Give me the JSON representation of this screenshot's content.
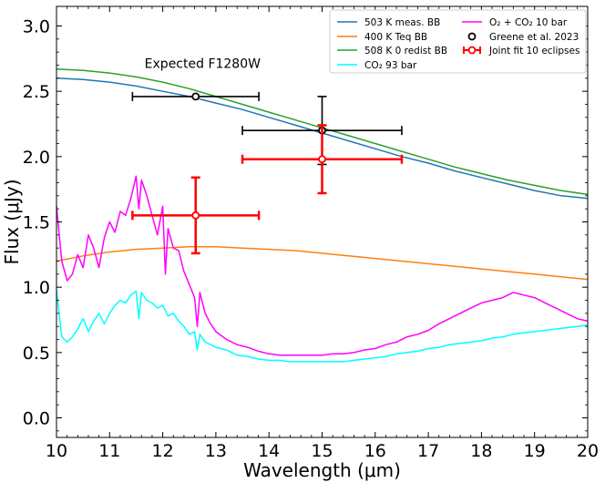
{
  "chart_data": {
    "type": "line",
    "title": "",
    "xlabel": "Wavelength (μm)",
    "ylabel": "Flux (μJy)",
    "xlim": [
      10,
      20
    ],
    "ylim": [
      -0.15,
      3.15
    ],
    "x_ticks": [
      10,
      11,
      12,
      13,
      14,
      15,
      16,
      17,
      18,
      19,
      20
    ],
    "x_tick_labels": [
      "10",
      "11",
      "12",
      "13",
      "14",
      "15",
      "16",
      "17",
      "18",
      "19",
      "20"
    ],
    "y_ticks": [
      0.0,
      0.5,
      1.0,
      1.5,
      2.0,
      2.5,
      3.0
    ],
    "y_tick_labels": [
      "0.0",
      "0.5",
      "1.0",
      "1.5",
      "2.0",
      "2.5",
      "3.0"
    ],
    "annotations": [
      {
        "text": "Expected F1280W",
        "x": 12.75,
        "y": 2.68
      }
    ],
    "series": [
      {
        "name": "503 K meas. BB",
        "kind": "line",
        "color": "#1f77b4",
        "x": [
          10,
          10.5,
          11,
          11.5,
          12,
          12.5,
          13,
          13.5,
          14,
          14.5,
          15,
          15.5,
          16,
          16.5,
          17,
          17.5,
          18,
          18.5,
          19,
          19.5,
          20
        ],
        "y": [
          2.6,
          2.59,
          2.57,
          2.54,
          2.5,
          2.46,
          2.41,
          2.36,
          2.3,
          2.24,
          2.18,
          2.12,
          2.06,
          2.0,
          1.95,
          1.89,
          1.84,
          1.79,
          1.74,
          1.7,
          1.68
        ]
      },
      {
        "name": "400 K Teq BB",
        "kind": "line",
        "color": "#ff7f0e",
        "x": [
          10,
          10.5,
          11,
          11.5,
          12,
          12.5,
          13,
          13.5,
          14,
          14.5,
          15,
          15.5,
          16,
          16.5,
          17,
          17.5,
          18,
          18.5,
          19,
          19.5,
          20
        ],
        "y": [
          1.2,
          1.24,
          1.27,
          1.29,
          1.3,
          1.31,
          1.31,
          1.3,
          1.29,
          1.28,
          1.26,
          1.24,
          1.22,
          1.2,
          1.18,
          1.16,
          1.14,
          1.12,
          1.1,
          1.08,
          1.06
        ]
      },
      {
        "name": "508 K 0 redist BB",
        "kind": "line",
        "color": "#2ca02c",
        "x": [
          10,
          10.5,
          11,
          11.5,
          12,
          12.5,
          13,
          13.5,
          14,
          14.5,
          15,
          15.5,
          16,
          16.5,
          17,
          17.5,
          18,
          18.5,
          19,
          19.5,
          20
        ],
        "y": [
          2.67,
          2.66,
          2.64,
          2.61,
          2.57,
          2.52,
          2.46,
          2.4,
          2.34,
          2.28,
          2.22,
          2.16,
          2.1,
          2.04,
          1.98,
          1.92,
          1.87,
          1.82,
          1.78,
          1.74,
          1.71
        ]
      },
      {
        "name": "CO₂ 93 bar",
        "kind": "line",
        "color": "#00ffff",
        "x": [
          10,
          10.1,
          10.2,
          10.3,
          10.4,
          10.5,
          10.6,
          10.7,
          10.8,
          10.9,
          11.0,
          11.1,
          11.2,
          11.3,
          11.4,
          11.5,
          11.55,
          11.6,
          11.7,
          11.8,
          11.9,
          12.0,
          12.1,
          12.2,
          12.3,
          12.4,
          12.5,
          12.6,
          12.65,
          12.7,
          12.8,
          12.9,
          13.0,
          13.2,
          13.4,
          13.6,
          13.8,
          14.0,
          14.2,
          14.4,
          14.6,
          14.8,
          15.0,
          15.2,
          15.4,
          15.6,
          15.8,
          16.0,
          16.2,
          16.4,
          16.6,
          16.8,
          17.0,
          17.2,
          17.4,
          17.6,
          17.8,
          18.0,
          18.2,
          18.4,
          18.6,
          18.8,
          19.0,
          19.2,
          19.4,
          19.6,
          19.8,
          20.0
        ],
        "y": [
          0.98,
          0.62,
          0.58,
          0.62,
          0.68,
          0.76,
          0.66,
          0.74,
          0.8,
          0.72,
          0.8,
          0.86,
          0.9,
          0.88,
          0.94,
          0.97,
          0.76,
          0.96,
          0.9,
          0.88,
          0.84,
          0.86,
          0.78,
          0.8,
          0.74,
          0.7,
          0.64,
          0.66,
          0.52,
          0.64,
          0.58,
          0.56,
          0.54,
          0.52,
          0.48,
          0.47,
          0.45,
          0.44,
          0.44,
          0.43,
          0.43,
          0.43,
          0.43,
          0.43,
          0.43,
          0.44,
          0.45,
          0.46,
          0.47,
          0.49,
          0.5,
          0.51,
          0.53,
          0.54,
          0.56,
          0.57,
          0.58,
          0.59,
          0.61,
          0.62,
          0.64,
          0.65,
          0.66,
          0.67,
          0.68,
          0.69,
          0.7,
          0.71
        ]
      },
      {
        "name": "O₂ + CO₂ 10 bar",
        "kind": "line",
        "color": "#ff00ff",
        "x": [
          10,
          10.1,
          10.2,
          10.3,
          10.4,
          10.5,
          10.6,
          10.7,
          10.8,
          10.9,
          11.0,
          11.1,
          11.2,
          11.3,
          11.4,
          11.5,
          11.55,
          11.6,
          11.7,
          11.8,
          11.9,
          12.0,
          12.05,
          12.1,
          12.2,
          12.3,
          12.4,
          12.5,
          12.6,
          12.65,
          12.7,
          12.8,
          12.9,
          13.0,
          13.2,
          13.4,
          13.6,
          13.8,
          14.0,
          14.2,
          14.4,
          14.6,
          14.8,
          15.0,
          15.2,
          15.4,
          15.6,
          15.8,
          16.0,
          16.2,
          16.4,
          16.6,
          16.8,
          17.0,
          17.2,
          17.4,
          17.6,
          17.8,
          18.0,
          18.2,
          18.4,
          18.6,
          18.8,
          19.0,
          19.2,
          19.4,
          19.6,
          19.8,
          20.0
        ],
        "y": [
          1.62,
          1.2,
          1.05,
          1.1,
          1.25,
          1.15,
          1.4,
          1.3,
          1.15,
          1.38,
          1.5,
          1.42,
          1.58,
          1.55,
          1.68,
          1.85,
          1.6,
          1.82,
          1.7,
          1.55,
          1.4,
          1.62,
          1.1,
          1.45,
          1.3,
          1.28,
          1.12,
          1.02,
          0.92,
          0.7,
          0.96,
          0.8,
          0.72,
          0.66,
          0.6,
          0.56,
          0.54,
          0.51,
          0.49,
          0.48,
          0.48,
          0.48,
          0.48,
          0.48,
          0.49,
          0.49,
          0.5,
          0.52,
          0.53,
          0.56,
          0.58,
          0.62,
          0.64,
          0.67,
          0.72,
          0.76,
          0.8,
          0.84,
          0.88,
          0.9,
          0.92,
          0.96,
          0.94,
          0.92,
          0.88,
          0.84,
          0.8,
          0.76,
          0.74
        ]
      },
      {
        "name": "Greene et al. 2023",
        "kind": "errorbar",
        "color": "#000000",
        "points": [
          {
            "x": 12.62,
            "y": 2.46,
            "xerr": 1.19,
            "yerr": 0.0
          },
          {
            "x": 15.0,
            "y": 2.2,
            "xerr": 1.5,
            "yerr": 0.26
          }
        ]
      },
      {
        "name": "Joint fit 10 eclipses",
        "kind": "errorbar",
        "color": "#ff0000",
        "points": [
          {
            "x": 12.62,
            "y": 1.55,
            "xerr": 1.19,
            "yerr": 0.29
          },
          {
            "x": 15.0,
            "y": 1.98,
            "xerr": 1.5,
            "yerr": 0.26
          }
        ]
      }
    ],
    "legend": {
      "placement": "top-right",
      "entries": [
        {
          "label": "503 K meas. BB",
          "color": "#1f77b4",
          "kind": "line"
        },
        {
          "label": "400 K Teq BB",
          "color": "#ff7f0e",
          "kind": "line"
        },
        {
          "label": "508 K 0 redist BB",
          "color": "#2ca02c",
          "kind": "line"
        },
        {
          "label": "CO₂ 93 bar",
          "color": "#00ffff",
          "kind": "line"
        },
        {
          "label": "O₂ + CO₂ 10 bar",
          "color": "#ff00ff",
          "kind": "line"
        },
        {
          "label": "Greene et al. 2023",
          "color": "#000000",
          "kind": "marker"
        },
        {
          "label": "Joint fit 10 eclipses",
          "color": "#ff0000",
          "kind": "errorbar"
        }
      ]
    }
  }
}
